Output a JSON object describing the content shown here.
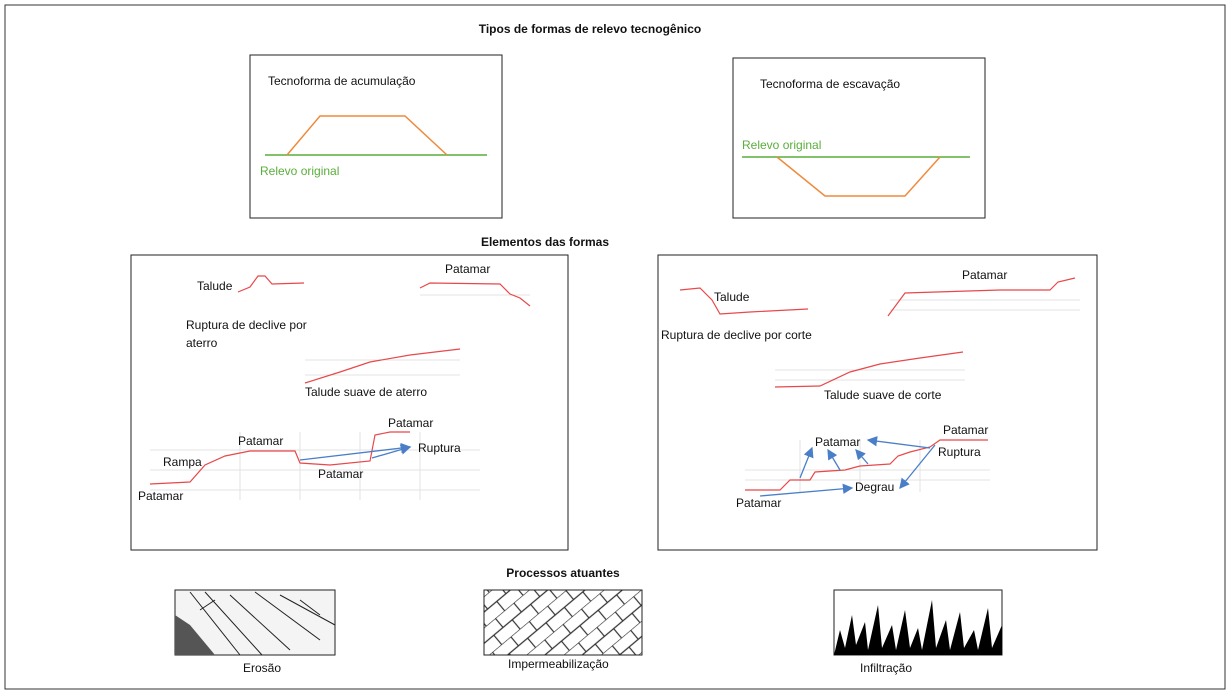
{
  "title": "Tipos de formas de relevo tecnogênico",
  "forms": [
    {
      "title": "Tecnoforma de acumulação",
      "baseline": "Relevo original"
    },
    {
      "title": "Tecnoforma de escavação",
      "baseline": "Relevo original"
    }
  ],
  "elements_title": "Elementos das formas",
  "elements": [
    {
      "labels": [
        "Talude",
        "Patamar",
        "Ruptura de declive por",
        "aterro",
        "Talude suave de aterro",
        "Patamar",
        "Patamar",
        "Ruptura",
        "Rampa",
        "Patamar",
        "Patamar"
      ]
    },
    {
      "labels": [
        "Talude",
        "Patamar",
        "Ruptura de declive por corte",
        "Talude suave de corte",
        "Patamar",
        "Patamar",
        "Ruptura",
        "Degrau",
        "Patamar"
      ]
    }
  ],
  "processes_title": "Processos atuantes",
  "processes": [
    "Erosão",
    "Impermeabilização",
    "Infiltração"
  ]
}
